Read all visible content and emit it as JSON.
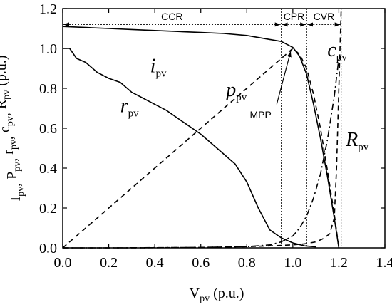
{
  "chart_data": {
    "type": "line",
    "x_label": {
      "main": "V",
      "sub": "pv",
      "suffix": " (p.u.)"
    },
    "y_label": {
      "parts": [
        {
          "main": "I",
          "sub": "pv",
          "suffix": ", "
        },
        {
          "main": "P",
          "sub": "pv",
          "suffix": ", "
        },
        {
          "main": "r",
          "sub": "pv",
          "suffix": ", "
        },
        {
          "main": "c",
          "sub": "pv",
          "suffix": ", "
        },
        {
          "main": "R",
          "sub": "pv",
          "suffix": " (p.u.)"
        }
      ]
    },
    "xlim": [
      0,
      1.4
    ],
    "ylim": [
      0,
      1.2
    ],
    "x_ticks": [
      "0.0",
      "0.2",
      "0.4",
      "0.6",
      "0.8",
      "1.0",
      "1.2",
      "1.4"
    ],
    "y_ticks": [
      "0.0",
      "0.2",
      "0.4",
      "0.6",
      "0.8",
      "1.0",
      "1.2"
    ],
    "regions": [
      {
        "name": "CCR",
        "x_from": 0,
        "x_to": 0.95
      },
      {
        "name": "CPR",
        "x_from": 0.95,
        "x_to": 1.06
      },
      {
        "name": "CVR",
        "x_from": 1.06,
        "x_to": 1.21
      }
    ],
    "annotation": {
      "text": "MPP",
      "x": 1.0,
      "y": 1.0
    },
    "series": [
      {
        "name": "i",
        "sub": "pv",
        "style": "solid",
        "label_pos": [
          0.38,
          0.88
        ],
        "x": [
          0,
          0.1,
          0.2,
          0.3,
          0.4,
          0.5,
          0.6,
          0.7,
          0.8,
          0.9,
          0.95,
          1.0,
          1.03,
          1.06,
          1.09,
          1.12,
          1.15,
          1.18,
          1.2
        ],
        "y": [
          1.11,
          1.105,
          1.1,
          1.095,
          1.09,
          1.085,
          1.08,
          1.075,
          1.065,
          1.045,
          1.035,
          1.005,
          0.96,
          0.87,
          0.72,
          0.55,
          0.36,
          0.15,
          0.0
        ]
      },
      {
        "name": "p",
        "sub": "pv",
        "style": "dashed",
        "label_pos": [
          0.71,
          0.76
        ],
        "x": [
          0,
          0.1,
          0.2,
          0.3,
          0.4,
          0.5,
          0.6,
          0.7,
          0.8,
          0.9,
          0.95,
          1.0,
          1.03,
          1.06,
          1.09,
          1.12,
          1.15,
          1.18,
          1.2
        ],
        "y": [
          0,
          0.1,
          0.2,
          0.3,
          0.4,
          0.5,
          0.6,
          0.7,
          0.8,
          0.9,
          0.95,
          1.0,
          0.97,
          0.9,
          0.77,
          0.6,
          0.39,
          0.17,
          0.0
        ]
      },
      {
        "name": "r",
        "sub": "pv",
        "style": "solid",
        "label_pos": [
          0.25,
          0.68
        ],
        "x": [
          0,
          0.03,
          0.06,
          0.1,
          0.15,
          0.2,
          0.25,
          0.3,
          0.35,
          0.4,
          0.45,
          0.5,
          0.55,
          0.6,
          0.65,
          0.7,
          0.75,
          0.8,
          0.85,
          0.9,
          0.95,
          1.0,
          1.05,
          1.1
        ],
        "y": [
          1.0,
          1.0,
          0.95,
          0.93,
          0.88,
          0.85,
          0.83,
          0.78,
          0.75,
          0.72,
          0.69,
          0.65,
          0.61,
          0.57,
          0.52,
          0.47,
          0.42,
          0.33,
          0.2,
          0.09,
          0.05,
          0.025,
          0.01,
          0.005
        ]
      },
      {
        "name": "c",
        "sub": "pv",
        "style": "dashdot",
        "label_pos": [
          1.15,
          0.96
        ],
        "x": [
          0,
          0.2,
          0.4,
          0.6,
          0.8,
          0.9,
          0.95,
          1.0,
          1.03,
          1.06,
          1.09,
          1.12,
          1.15,
          1.18,
          1.2
        ],
        "y": [
          0,
          0.0,
          0.001,
          0.002,
          0.006,
          0.015,
          0.03,
          0.06,
          0.1,
          0.16,
          0.25,
          0.37,
          0.54,
          0.76,
          0.95
        ]
      },
      {
        "name": "R",
        "sub": "pv",
        "style": "dashed",
        "label_pos": [
          1.23,
          0.51
        ],
        "x": [
          0,
          0.3,
          0.6,
          0.8,
          0.9,
          1.0,
          1.05,
          1.1,
          1.13,
          1.16,
          1.18,
          1.19,
          1.2,
          1.21
        ],
        "y": [
          0,
          0.0,
          0.002,
          0.006,
          0.01,
          0.015,
          0.02,
          0.03,
          0.045,
          0.07,
          0.15,
          0.4,
          0.8,
          1.2
        ]
      }
    ]
  }
}
